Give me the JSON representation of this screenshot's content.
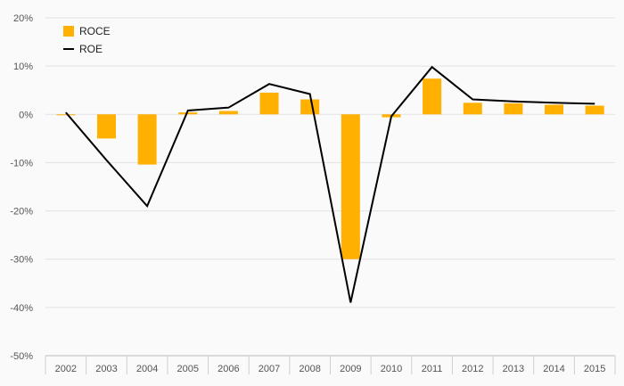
{
  "chart_data": {
    "type": "bar",
    "categories": [
      "2002",
      "2003",
      "2004",
      "2005",
      "2006",
      "2007",
      "2008",
      "2009",
      "2010",
      "2011",
      "2012",
      "2013",
      "2014",
      "2015"
    ],
    "series": [
      {
        "name": "ROCE",
        "kind": "bar",
        "color": "#FFB000",
        "values": [
          -0.1,
          -5.0,
          -10.4,
          0.4,
          0.7,
          4.5,
          3.1,
          -30.0,
          -0.6,
          7.4,
          2.4,
          2.3,
          2.0,
          1.8
        ]
      },
      {
        "name": "ROE",
        "kind": "line",
        "color": "#000000",
        "values": [
          0.4,
          -9.5,
          -19.0,
          0.8,
          1.4,
          6.3,
          4.2,
          -39.0,
          -0.4,
          9.8,
          3.1,
          2.7,
          2.4,
          2.2
        ]
      }
    ],
    "yticks": [
      "20%",
      "10%",
      "0%",
      "-10%",
      "-20%",
      "-30%",
      "-40%",
      "-50%"
    ],
    "ylim": [
      -50,
      20
    ],
    "legend_position": "top-left",
    "grid": true
  }
}
